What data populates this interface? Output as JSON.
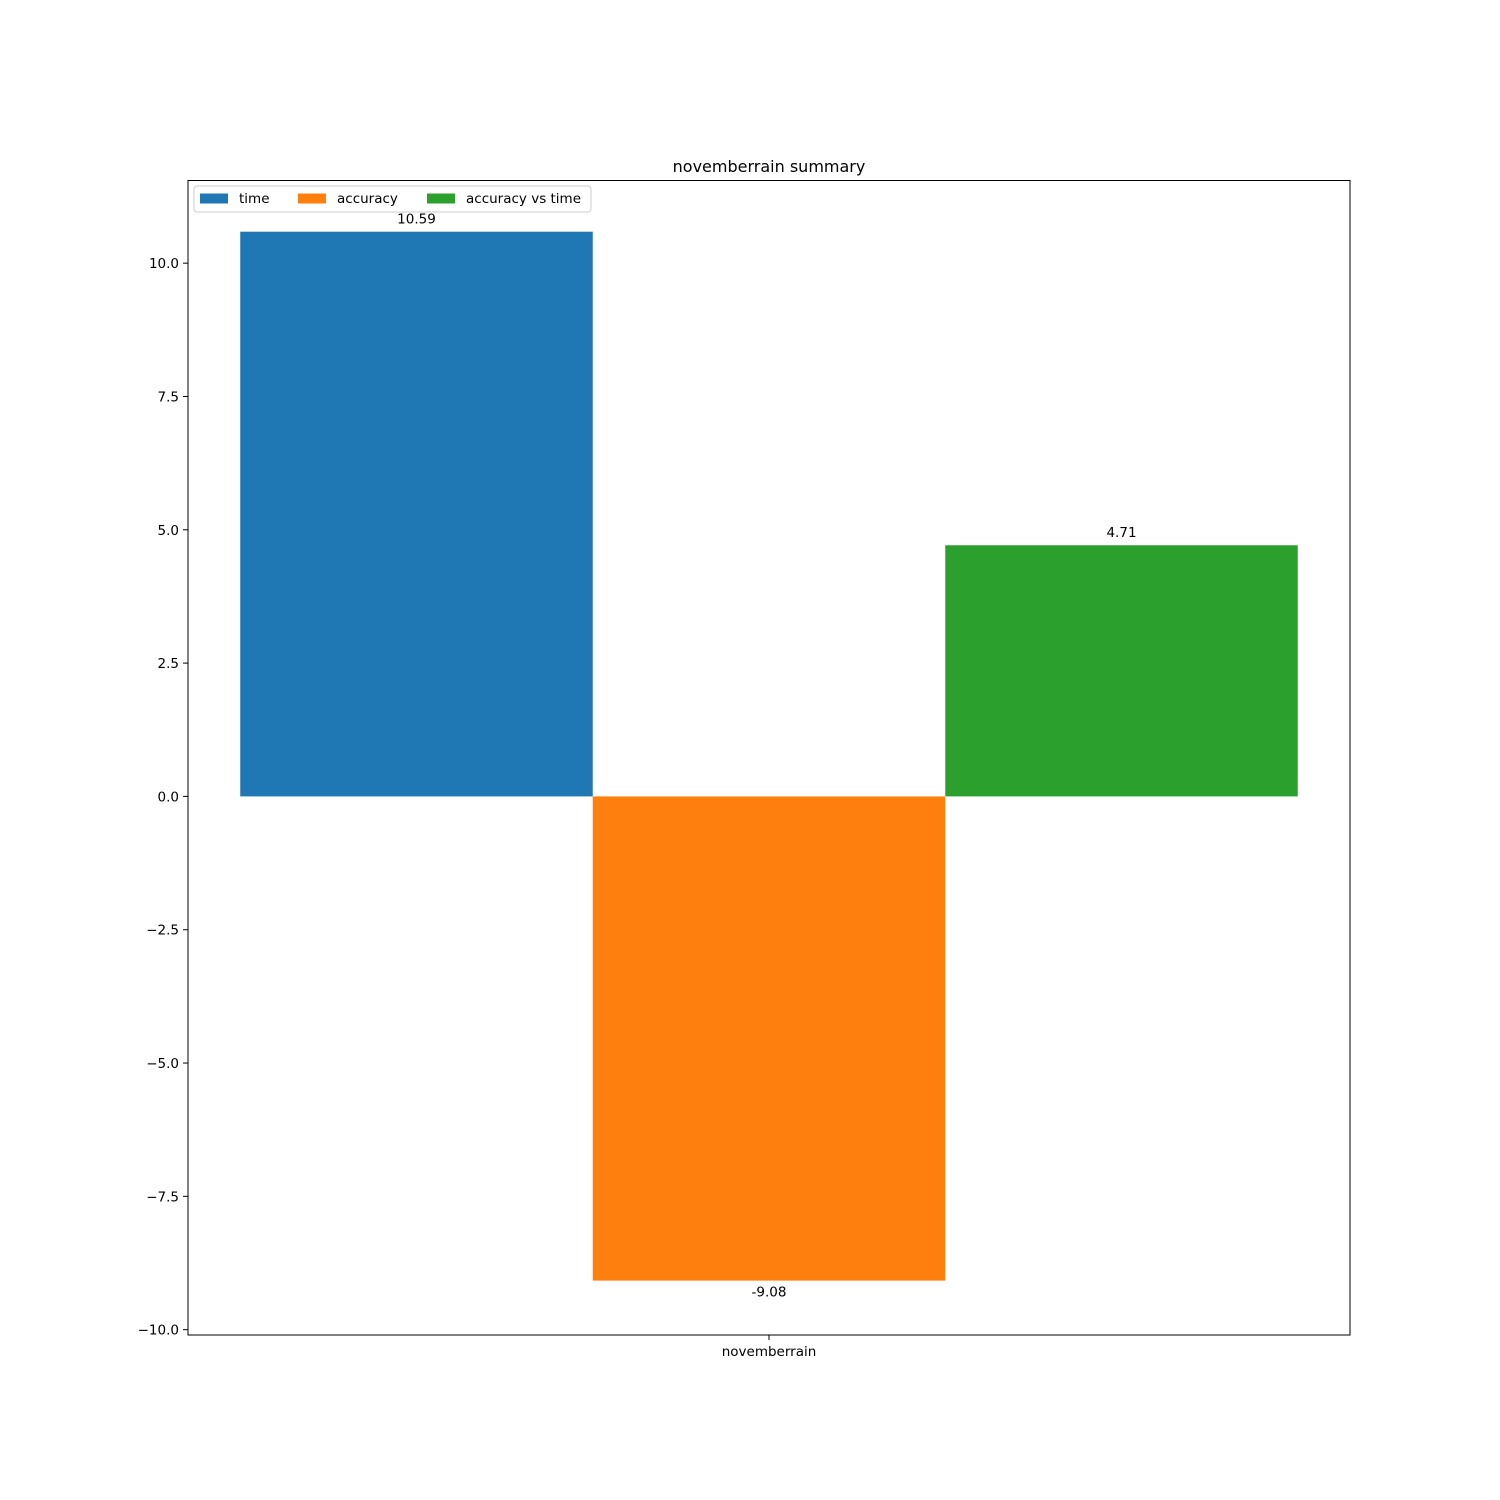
{
  "chart_data": {
    "type": "bar",
    "title": "novemberrain summary",
    "xlabel": "",
    "ylabel": "",
    "categories": [
      "novemberrain"
    ],
    "series": [
      {
        "name": "time",
        "values": [
          10.59
        ],
        "label": "10.59",
        "color": "#1f77b4"
      },
      {
        "name": "accuracy",
        "values": [
          -9.08
        ],
        "label": "-9.08",
        "color": "#ff7f0e"
      },
      {
        "name": "accuracy vs time",
        "values": [
          4.71
        ],
        "label": "4.71",
        "color": "#2ca02c"
      }
    ],
    "ylim": [
      -10.1,
      11.55
    ],
    "yticks": [
      {
        "value": 10.0,
        "label": "10.0"
      },
      {
        "value": 7.5,
        "label": "7.5"
      },
      {
        "value": 5.0,
        "label": "5.0"
      },
      {
        "value": 2.5,
        "label": "2.5"
      },
      {
        "value": 0.0,
        "label": "0.0"
      },
      {
        "value": -2.5,
        "label": "−2.5"
      },
      {
        "value": -5.0,
        "label": "−5.0"
      },
      {
        "value": -7.5,
        "label": "−7.5"
      },
      {
        "value": -10.0,
        "label": "−10.0"
      }
    ],
    "grid": false,
    "legend": {
      "position": "top-left",
      "columns": 3
    }
  }
}
